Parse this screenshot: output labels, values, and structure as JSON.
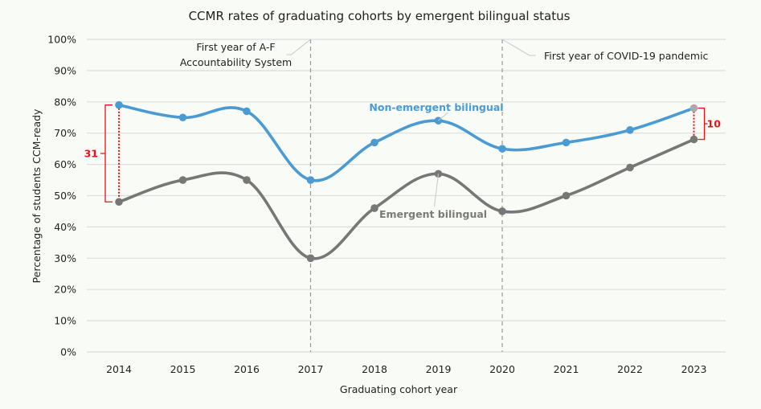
{
  "chart_data": {
    "type": "line",
    "title": "CCMR rates of graduating cohorts by emergent bilingual status",
    "xlabel": "Graduating cohort year",
    "ylabel": "Percentage of students CCM-ready",
    "categories": [
      "2014",
      "2015",
      "2016",
      "2017",
      "2018",
      "2019",
      "2020",
      "2021",
      "2022",
      "2023"
    ],
    "ylim": [
      0,
      100
    ],
    "yticks": [
      "0%",
      "10%",
      "20%",
      "30%",
      "40%",
      "50%",
      "60%",
      "70%",
      "80%",
      "90%",
      "100%"
    ],
    "grid": true,
    "series": [
      {
        "name": "Non-emergent bilingual",
        "color": "#4a9bd4",
        "values": [
          79,
          75,
          77,
          55,
          67,
          74,
          65,
          67,
          71,
          78
        ]
      },
      {
        "name": "Emergent bilingual",
        "color": "#777777",
        "values": [
          48,
          55,
          55,
          30,
          46,
          57,
          45,
          50,
          59,
          68
        ]
      }
    ],
    "annotations": [
      {
        "text_lines": [
          "First year of A-F",
          "Accountability System"
        ],
        "x": "2017"
      },
      {
        "text_lines": [
          "First year of COVID-19 pandemic"
        ],
        "x": "2020"
      }
    ],
    "gap_labels": [
      {
        "x": "2014",
        "value": "31"
      },
      {
        "x": "2023",
        "value": "10"
      }
    ],
    "gap_color": "#e8141a"
  }
}
